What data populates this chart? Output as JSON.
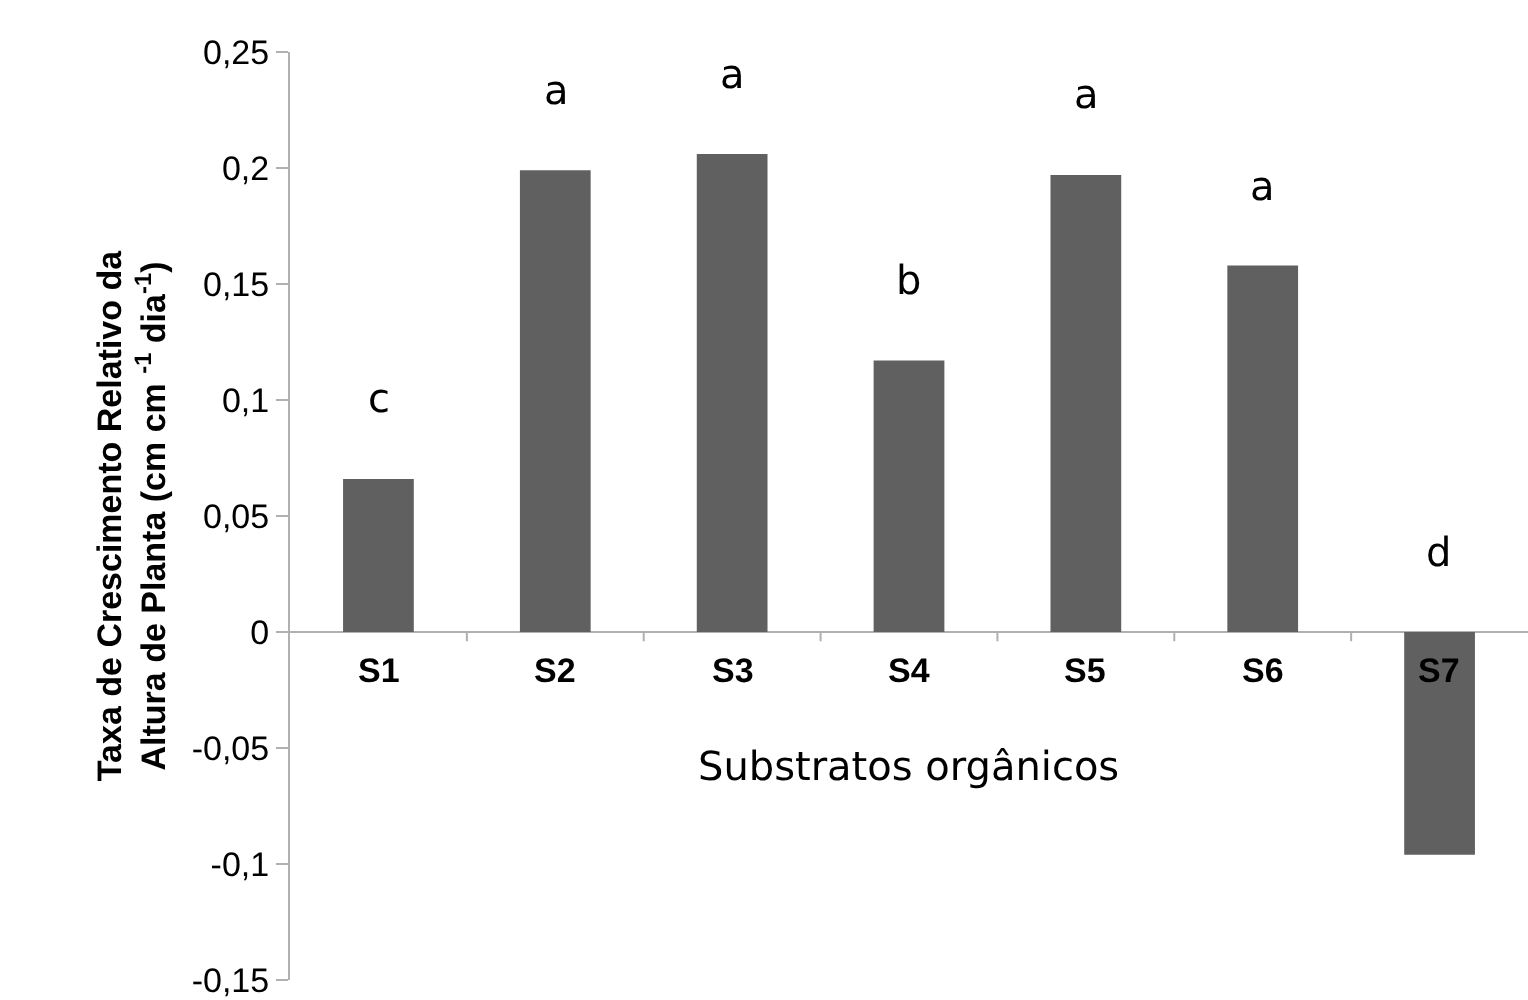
{
  "chart_data": {
    "type": "bar",
    "xlabel": "Substratos orgânicos",
    "ylabel": "Taxa de Crescimento Relativo da Altura de Planta (cm cm $^{-1}$ dia$^{-1}$)",
    "categories": [
      "S1",
      "S2",
      "S3",
      "S4",
      "S5",
      "S6",
      "S7"
    ],
    "values": [
      0.066,
      0.199,
      0.206,
      0.117,
      0.197,
      0.158,
      -0.096
    ],
    "color": "#606060",
    "ylim": [
      -0.15,
      0.25
    ],
    "yticks": [
      {
        "value": -0.15,
        "label": "-0,15"
      },
      {
        "value": -0.1,
        "label": "-0,1"
      },
      {
        "value": -0.05,
        "label": "-0,05"
      },
      {
        "value": 0,
        "label": "0"
      },
      {
        "value": 0.05,
        "label": "0,05"
      },
      {
        "value": 0.1,
        "label": "0,1"
      },
      {
        "value": 0.15,
        "label": "0,15"
      },
      {
        "value": 0.2,
        "label": "0,2"
      },
      {
        "value": 0.25,
        "label": "0,25"
      }
    ],
    "legend": false,
    "annotations": [
      {
        "text": "c",
        "x": "S1",
        "y": 0.066
      },
      {
        "text": "a",
        "x": "S2",
        "y": 0.199
      },
      {
        "text": "a",
        "x": "S3",
        "y": 0.206
      },
      {
        "text": "b",
        "x": "S4",
        "y": 0.117
      },
      {
        "text": "a",
        "x": "S5",
        "y": 0.197
      },
      {
        "text": "a",
        "x": "S6",
        "y": 0.158
      },
      {
        "text": "d",
        "x": "S7",
        "y": 0
      }
    ]
  }
}
